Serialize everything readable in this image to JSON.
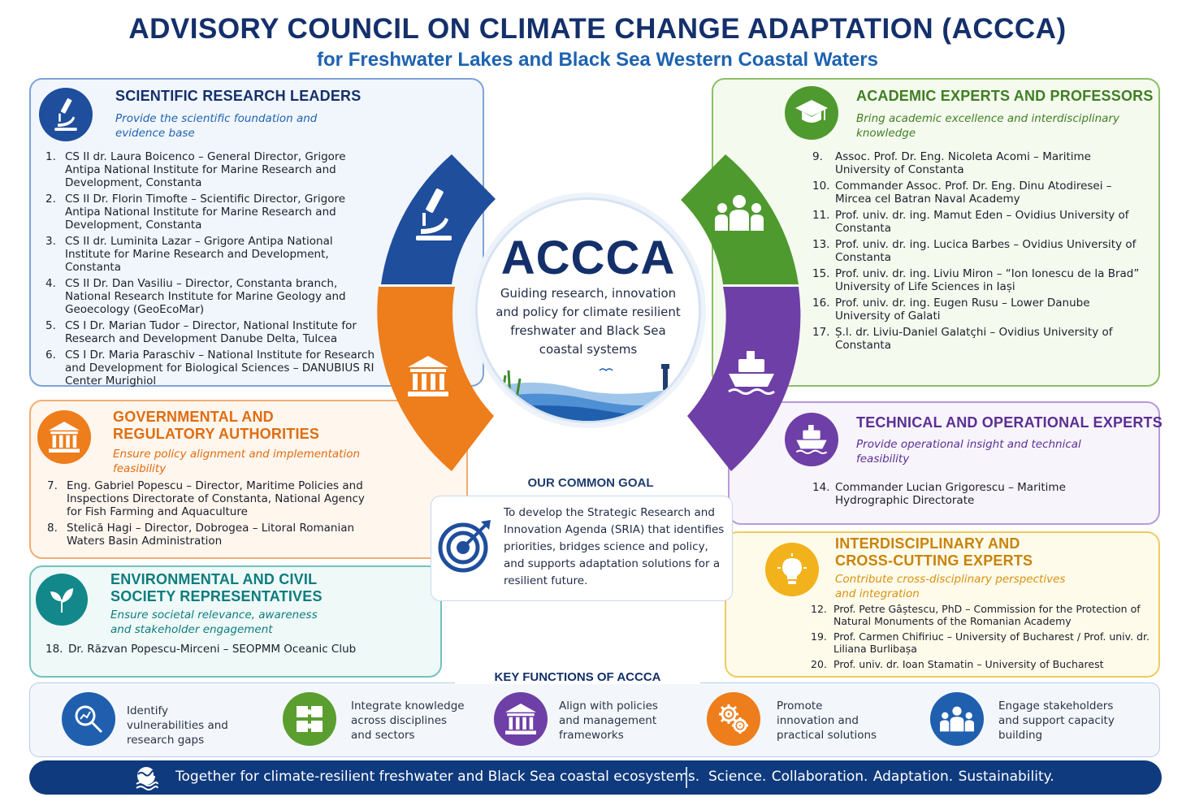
{
  "header": {
    "title": "ADVISORY COUNCIL ON CLIMATE CHANGE ADAPTATION (ACCCA)",
    "subtitle": "for Freshwater Lakes and Black Sea Western Coastal Waters"
  },
  "colors": {
    "navy": "#14306b",
    "blue": "#1f4e9c",
    "green": "#4f9a2e",
    "orange": "#ee7d1b",
    "purple": "#6e3fa6",
    "teal": "#12888a",
    "yellow": "#f2b21b"
  },
  "groups": {
    "research": {
      "title": "SCIENTIFIC RESEARCH LEADERS",
      "subtitle": "Provide the scientific foundation and evidence base",
      "icon": "microscope-icon",
      "members": [
        {
          "num": "1.",
          "text": "CS II dr. Laura Boicenco – General Director, Grigore Antipa National Institute for Marine Research and Development, Constanta"
        },
        {
          "num": "2.",
          "text": "CS II Dr. Florin Timofte – Scientific Director, Grigore Antipa National Institute for Marine Research and Development, Constanta"
        },
        {
          "num": "3.",
          "text": "CS II dr. Luminita Lazar – Grigore Antipa National Institute for Marine Research and Development, Constanta"
        },
        {
          "num": "4.",
          "text": "CS II Dr. Dan Vasiliu – Director, Constanta branch, National Research Institute for Marine Geology and Geoecology (GeoEcoMar)"
        },
        {
          "num": "5.",
          "text": "CS I Dr. Marian Tudor – Director, National Institute for Research and Development Danube Delta, Tulcea"
        },
        {
          "num": "6.",
          "text": "CS I Dr. Maria Paraschiv – National Institute for Research and Development for Biological Sciences – DANUBIUS RI Center Murighiol"
        }
      ]
    },
    "academic": {
      "title": "ACADEMIC EXPERTS AND PROFESSORS",
      "subtitle": "Bring academic excellence and interdisciplinary knowledge",
      "icon": "graduation-cap-icon",
      "members": [
        {
          "num": "9.",
          "text": "Assoc. Prof. Dr. Eng. Nicoleta Acomi – Maritime University of Constanta"
        },
        {
          "num": "10.",
          "text": "Commander Assoc. Prof. Dr. Eng. Dinu Atodiresei – Mircea cel Batran Naval Academy"
        },
        {
          "num": "11.",
          "text": "Prof. univ. dr. ing. Mamut Eden – Ovidius University of Constanta"
        },
        {
          "num": "13.",
          "text": "Prof. univ. dr. ing. Lucica Barbes – Ovidius University of Constanta"
        },
        {
          "num": "15.",
          "text": "Prof. univ. dr. ing. Liviu Miron – “Ion Ionescu de la Brad” University of Life Sciences in Iași"
        },
        {
          "num": "16.",
          "text": "Prof. univ. dr. ing. Eugen Rusu – Lower Danube University of Galati"
        },
        {
          "num": "17.",
          "text": "Ș.l. dr. Liviu-Daniel Galatçhi – Ovidius University of Constanta"
        }
      ]
    },
    "government": {
      "title_l1": "GOVERNMENTAL AND",
      "title_l2": "REGULATORY AUTHORITIES",
      "subtitle": "Ensure policy alignment and implementation feasibility",
      "icon": "government-building-icon",
      "members": [
        {
          "num": "7.",
          "text": "Eng. Gabriel Popescu – Director, Maritime Policies and Inspections Directorate of Constanta, National Agency for Fish Farming and Aquaculture"
        },
        {
          "num": "8.",
          "text": "Stelică Hagi – Director, Dobrogea – Litoral Romanian Waters Basin Administration"
        }
      ]
    },
    "technical": {
      "title": "TECHNICAL AND OPERATIONAL EXPERTS",
      "subtitle": "Provide operational insight and technical feasibility",
      "icon": "ship-icon",
      "members": [
        {
          "num": "14.",
          "text": "Commander Lucian Grigorescu – Maritime Hydrographic Directorate"
        }
      ]
    },
    "civil": {
      "title_l1": "ENVIRONMENTAL AND CIVIL",
      "title_l2": "SOCIETY REPRESENTATIVES",
      "subtitle": "Ensure societal relevance, awareness and stakeholder engagement",
      "icon": "leaf-icon",
      "members": [
        {
          "num": "18.",
          "text": "Dr. Răzvan Popescu-Mirceni – SEOPMM Oceanic Club"
        }
      ]
    },
    "interdisciplinary": {
      "title_l1": "INTERDISCIPLINARY AND",
      "title_l2": "CROSS-CUTTING EXPERTS",
      "subtitle": "Contribute cross-disciplinary perspectives and integration",
      "icon": "lightbulb-icon",
      "members": [
        {
          "num": "12.",
          "text": "Prof. Petre Gâștescu, PhD – Commission for the Protection of Natural Monuments of the Romanian Academy"
        },
        {
          "num": "19.",
          "text": "Prof. Carmen Chifiriuc – University of Bucharest / Prof. univ. dr. Liliana Burlibașa"
        },
        {
          "num": "20.",
          "text": "Prof. univ. dr. Ioan Stamatin – University of Bucharest"
        }
      ]
    }
  },
  "center": {
    "acronym": "ACCCA",
    "description": "Guiding research, innovation and policy for climate resilient freshwater and Black Sea coastal systems"
  },
  "goal": {
    "heading": "OUR COMMON GOAL",
    "text": "To develop the Strategic Research and Innovation Agenda (SRIA) that identifies priorities, bridges science and policy, and supports adaptation solutions for a resilient future.",
    "icon": "target-icon"
  },
  "key_functions": {
    "title": "KEY FUNCTIONS OF ACCCA",
    "items": [
      {
        "label": "Identify vulnerabilities and research gaps",
        "icon": "magnifier-chart-icon",
        "color": "#1f5fae"
      },
      {
        "label": "Integrate knowledge across disciplines and sectors",
        "icon": "puzzle-icon",
        "color": "#5a9e2f"
      },
      {
        "label": "Align with policies and management frameworks",
        "icon": "government-building-icon",
        "color": "#6e3fa6"
      },
      {
        "label": "Promote innovation and practical solutions",
        "icon": "gears-icon",
        "color": "#ee7d1b"
      },
      {
        "label": "Engage stakeholders and support capacity building",
        "icon": "people-group-icon",
        "color": "#1f5fae"
      }
    ]
  },
  "footer": {
    "left": "Together for climate-resilient freshwater and Black Sea coastal ecosystems.",
    "right": "Science.  Collaboration.  Adaptation.  Sustainability.",
    "icon": "globe-waves-icon"
  }
}
